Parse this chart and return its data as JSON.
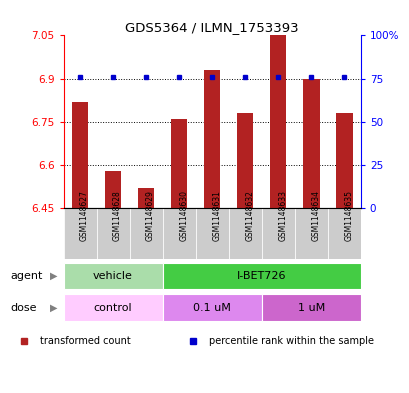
{
  "title": "GDS5364 / ILMN_1753393",
  "samples": [
    "GSM1148627",
    "GSM1148628",
    "GSM1148629",
    "GSM1148630",
    "GSM1148631",
    "GSM1148632",
    "GSM1148633",
    "GSM1148634",
    "GSM1148635"
  ],
  "transformed_count": [
    6.82,
    6.58,
    6.52,
    6.76,
    6.93,
    6.78,
    7.05,
    6.9,
    6.78
  ],
  "percentile_y": [
    6.905,
    6.905,
    6.905,
    6.905,
    6.905,
    6.905,
    6.905,
    6.905,
    6.905
  ],
  "ylim_left": [
    6.45,
    7.05
  ],
  "ylim_right": [
    0,
    100
  ],
  "yticks_left": [
    6.45,
    6.6,
    6.75,
    6.9,
    7.05
  ],
  "yticks_right": [
    0,
    25,
    50,
    75,
    100
  ],
  "bar_color": "#b22222",
  "dot_color": "#0000cc",
  "bar_bottom": 6.45,
  "agent_groups": [
    {
      "label": "vehicle",
      "start": 0,
      "end": 3,
      "color": "#aaddaa"
    },
    {
      "label": "I-BET726",
      "start": 3,
      "end": 9,
      "color": "#44cc44"
    }
  ],
  "dose_groups": [
    {
      "label": "control",
      "start": 0,
      "end": 3,
      "color": "#ffccff"
    },
    {
      "label": "0.1 uM",
      "start": 3,
      "end": 6,
      "color": "#dd88ee"
    },
    {
      "label": "1 uM",
      "start": 6,
      "end": 9,
      "color": "#cc66cc"
    }
  ],
  "legend_items": [
    {
      "color": "#b22222",
      "label": "transformed count"
    },
    {
      "color": "#0000cc",
      "label": "percentile rank within the sample"
    }
  ]
}
